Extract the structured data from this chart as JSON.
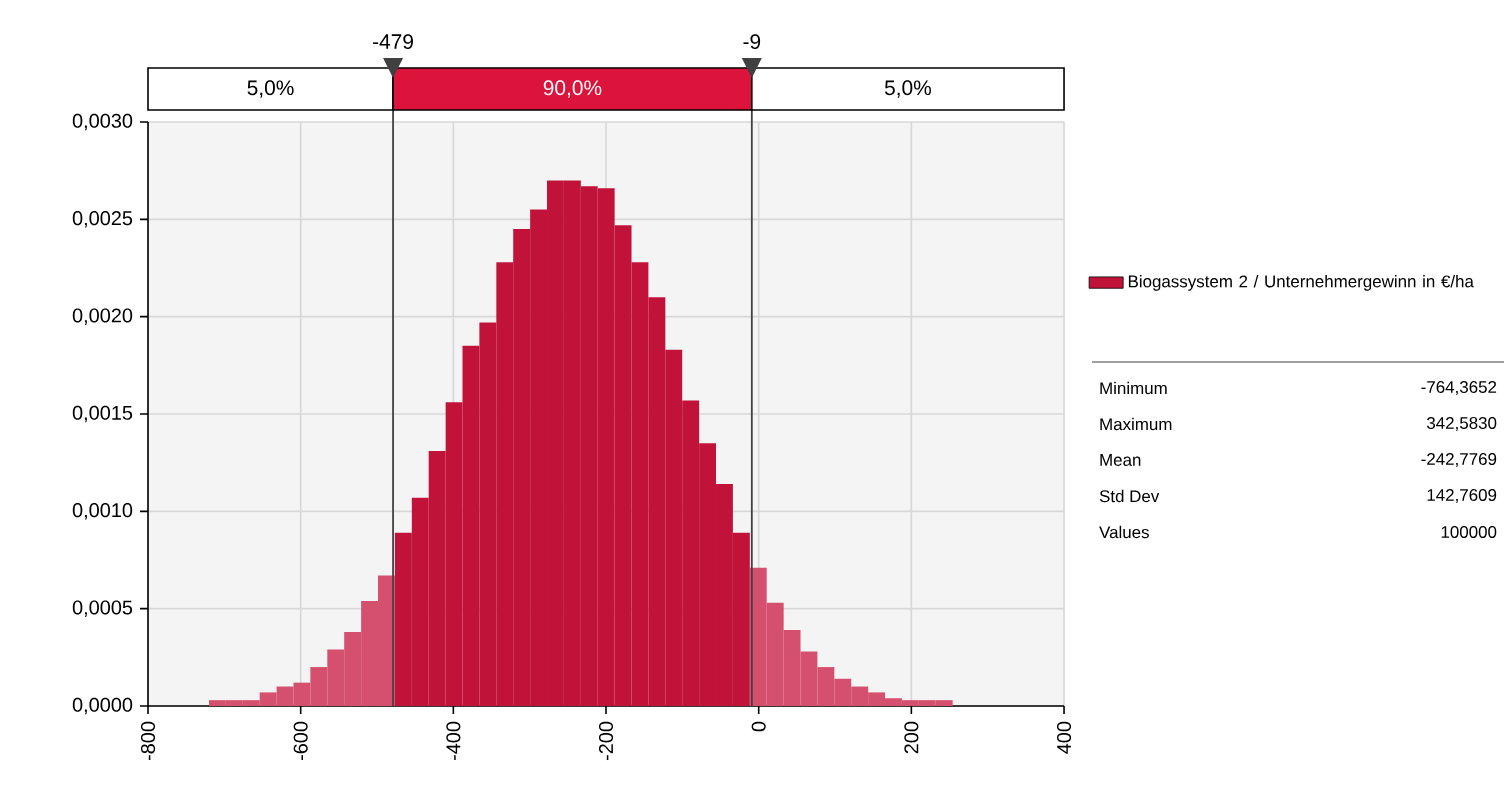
{
  "chart_data": {
    "type": "histogram",
    "bins": [
      -764.4,
      -742.2,
      -720.1,
      -698.0,
      -675.8,
      -653.7,
      -631.5,
      -609.4,
      -587.3,
      -565.1,
      -543.0,
      -520.8,
      -498.7,
      -476.6,
      -454.4,
      -432.3,
      -410.1,
      -388.0,
      -365.9,
      -343.7,
      -321.6,
      -299.4,
      -277.3,
      -255.2,
      -233.0,
      -210.9,
      -188.7,
      -166.6,
      -144.5,
      -122.3,
      -100.2,
      -78.0,
      -55.9,
      -33.8,
      -11.6,
      10.5,
      32.7,
      54.8,
      76.9,
      99.1,
      121.2,
      143.4,
      165.5,
      187.6,
      209.8,
      231.9,
      254.1,
      276.2,
      298.3,
      320.5,
      342.6
    ],
    "series": [
      {
        "name": "Biogassystem  2 / Unternehmergewinn in €/ha",
        "color": "#c1123a",
        "values": [
          0,
          0,
          3e-05,
          3e-05,
          3e-05,
          7e-05,
          0.0001,
          0.00012,
          0.0002,
          0.00029,
          0.00038,
          0.00054,
          0.00067,
          0.00089,
          0.00107,
          0.00131,
          0.00156,
          0.00185,
          0.00197,
          0.00228,
          0.00245,
          0.00255,
          0.0027,
          0.0027,
          0.00267,
          0.00266,
          0.00247,
          0.00228,
          0.0021,
          0.00183,
          0.00157,
          0.00135,
          0.00114,
          0.00089,
          0.00071,
          0.00053,
          0.00039,
          0.00028,
          0.0002,
          0.00014,
          0.0001,
          7e-05,
          4e-05,
          3e-05,
          3e-05,
          3e-05,
          0,
          0,
          0,
          0
        ],
        "colors": [
          "#d4506e",
          "#d4506e",
          "#d4506e",
          "#d4506e",
          "#d4506e",
          "#d4506e",
          "#d4506e",
          "#d4506e",
          "#d4506e",
          "#d4506e",
          "#d4506e",
          "#d4506e",
          "#d4506e",
          "#c1123a",
          "#c1123a",
          "#c1123a",
          "#c1123a",
          "#c1123a",
          "#c1123a",
          "#c1123a",
          "#c1123a",
          "#c1123a",
          "#c1123a",
          "#c1123a",
          "#c1123a",
          "#c1123a",
          "#c1123a",
          "#c1123a",
          "#c1123a",
          "#c1123a",
          "#c1123a",
          "#c1123a",
          "#c1123a",
          "#c1123a",
          "#d4506e",
          "#d4506e",
          "#d4506e",
          "#d4506e",
          "#d4506e",
          "#d4506e",
          "#d4506e",
          "#d4506e",
          "#d4506e",
          "#d4506e",
          "#d4506e",
          "#d4506e",
          "#d4506e",
          "#d4506e",
          "#d4506e",
          "#d4506e"
        ]
      }
    ],
    "xlim": [
      -800,
      400
    ],
    "xticks": [
      -800,
      -600,
      -400,
      -200,
      0,
      200,
      400
    ],
    "ylim": [
      0,
      0.003
    ],
    "yticks": [
      {
        "value": 0,
        "label": "0,0000"
      },
      {
        "value": 0.0005,
        "label": "0,0005"
      },
      {
        "value": 0.001,
        "label": "0,0010"
      },
      {
        "value": 0.0015,
        "label": "0,0015"
      },
      {
        "value": 0.002,
        "label": "0,0020"
      },
      {
        "value": 0.0025,
        "label": "0,0025"
      },
      {
        "value": 0.003,
        "label": "0,0030"
      }
    ],
    "grid": true,
    "legend": "right",
    "ref_lines": [
      {
        "axis": "x",
        "value": -479,
        "label": "-479",
        "color": "#404040"
      },
      {
        "axis": "x",
        "value": -9,
        "label": "-9",
        "color": "#404040"
      }
    ],
    "annotations": [
      "5,0%",
      "90,0%",
      "5,0%",
      "Minimum",
      "-764,3652",
      "Maximum",
      "342,5830",
      "Mean",
      "-242,7769",
      "Std Dev",
      "142,7609",
      "Values",
      "100000"
    ]
  }
}
